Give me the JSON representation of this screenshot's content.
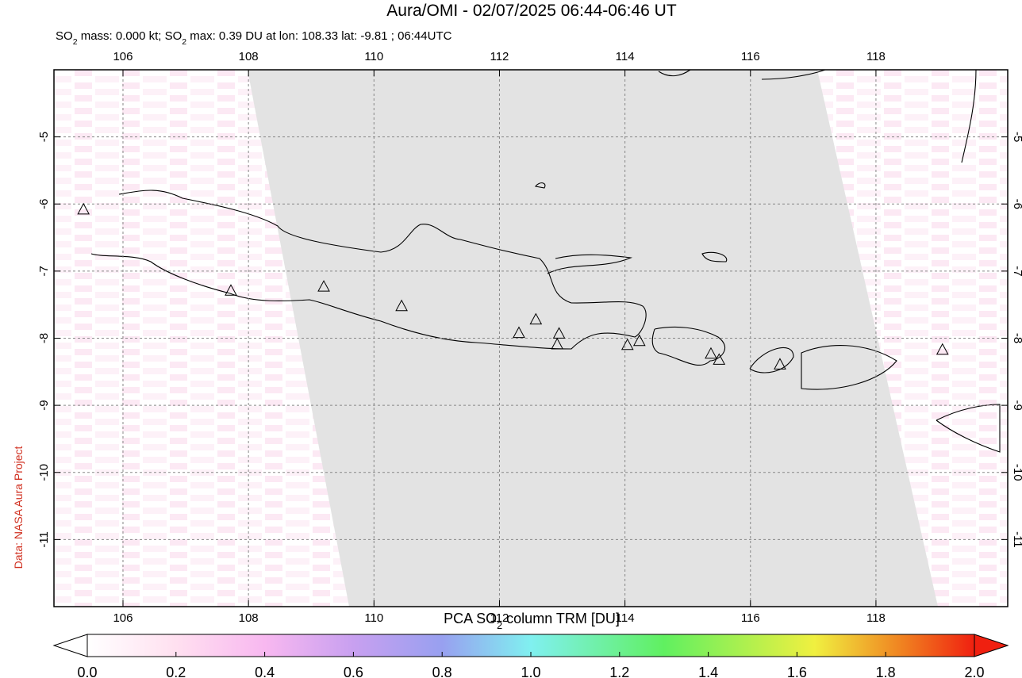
{
  "chart_data": {
    "type": "map",
    "title": "Aura/OMI - 02/07/2025 06:44-06:46 UT",
    "subtitle_parts": [
      "SO",
      "2",
      " mass: 0.000 kt; SO",
      "2",
      " max: 0.39 DU at lon: 108.33 lat: -9.81 ; 06:44UTC"
    ],
    "credit": "Data: NASA Aura Project",
    "xlim": [
      104.9,
      120.1
    ],
    "ylim": [
      -12,
      -4
    ],
    "xticks": [
      106,
      108,
      110,
      112,
      114,
      116,
      118
    ],
    "yticks": [
      -5,
      -6,
      -7,
      -8,
      -9,
      -10,
      -11
    ],
    "grid": true,
    "volcanoes": {
      "lon": [
        105.37,
        107.72,
        109.2,
        110.44,
        112.31,
        112.58,
        112.95,
        112.92,
        114.04,
        114.23,
        115.37,
        115.5,
        116.47,
        119.06
      ],
      "lat": [
        -6.09,
        -7.3,
        -7.24,
        -7.53,
        -7.93,
        -7.73,
        -7.94,
        -8.1,
        -8.11,
        -8.05,
        -8.24,
        -8.33,
        -8.4,
        -8.18
      ]
    },
    "colorbar": {
      "label_parts": [
        "PCA SO",
        "2",
        " column TRM [DU]"
      ],
      "lim": [
        0,
        2
      ],
      "ticks": [
        {
          "value": 0,
          "label": "0.0"
        },
        {
          "value": 0.2,
          "label": "0.2"
        },
        {
          "value": 0.4,
          "label": "0.4"
        },
        {
          "value": 0.6,
          "label": "0.6"
        },
        {
          "value": 0.8,
          "label": "0.8"
        },
        {
          "value": 1,
          "label": "1.0"
        },
        {
          "value": 1.2,
          "label": "1.2"
        },
        {
          "value": 1.4,
          "label": "1.4"
        },
        {
          "value": 1.6,
          "label": "1.6"
        },
        {
          "value": 1.8,
          "label": "1.8"
        },
        {
          "value": 2,
          "label": "2.0"
        }
      ]
    }
  }
}
